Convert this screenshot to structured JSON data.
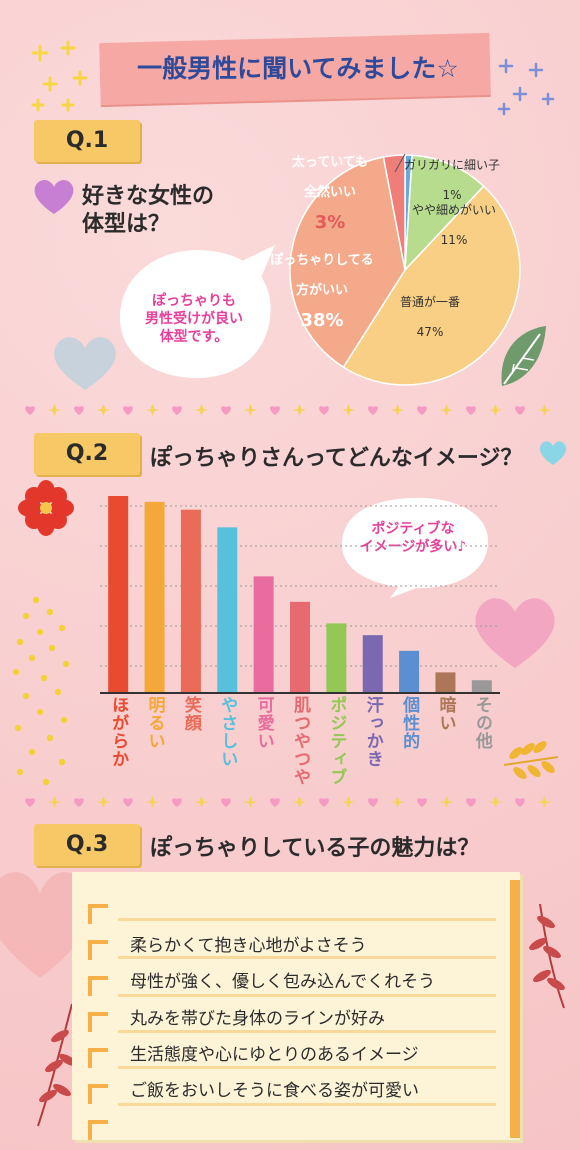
{
  "header": {
    "title": "一般男性に聞いてみました☆"
  },
  "q1": {
    "tag": "Q.1",
    "question_line1": "好きな女性の",
    "question_line2": "体型は？",
    "bubble": [
      "ぽっちゃりも",
      "男性受けが良い",
      "体型です。"
    ],
    "labels": {
      "gari": "ガリガリに細い子",
      "gari_pct": "1%",
      "yaya": "やや細めがいい",
      "yaya_pct": "11%",
      "futsu": "普通が一番",
      "futsu_pct": "47%",
      "pocchari1": "ぽっちゃりしてる",
      "pocchari2": "方がいい",
      "pocchari_pct": "38%",
      "futotte1": "太っていても",
      "futotte2": "全然いい",
      "futotte_pct": "3%"
    }
  },
  "q2": {
    "tag": "Q.2",
    "question": "ぽっちゃりさんってどんなイメージ？",
    "bubble": [
      "ポジティブな",
      "イメージが多い♪"
    ]
  },
  "q3": {
    "tag": "Q.3",
    "question": "ぽっちゃりしている子の魅力は？",
    "items": [
      "柔らかくて抱き心地がよさそう",
      "母性が強く、優しく包み込んでくれそう",
      "丸みを帯びた身体のラインが好み",
      "生活態度や心にゆとりのあるイメージ",
      "ご飯をおいしそうに食べる姿が可愛い"
    ]
  },
  "chart_data": [
    {
      "type": "pie",
      "categories": [
        "ガリガリに細い子",
        "やや細めがいい",
        "普通が一番",
        "ぽっちゃりしてる方がいい",
        "太っていても全然いい"
      ],
      "values": [
        1,
        11,
        47,
        38,
        3
      ],
      "colors": [
        "#6aa9dc",
        "#b7dc8e",
        "#f8cf84",
        "#f3a98a",
        "#ef7d78"
      ],
      "title": ""
    },
    {
      "type": "bar",
      "categories": [
        "ほがらか",
        "明るい",
        "笑顔",
        "やさしい",
        "可愛い",
        "肌つやつや",
        "ポジティブ",
        "汗っかき",
        "個性的",
        "暗い",
        "その他"
      ],
      "values": [
        100,
        97,
        93,
        84,
        59,
        46,
        35,
        29,
        21,
        10,
        6
      ],
      "colors": [
        "#e84b2f",
        "#f5a83a",
        "#ea6b58",
        "#57c0dc",
        "#e96c9e",
        "#e66a6f",
        "#93c854",
        "#7a68b1",
        "#5b8fd2",
        "#ad7658",
        "#999999"
      ],
      "ylim": [
        0,
        100
      ],
      "grid": true,
      "title": ""
    }
  ]
}
